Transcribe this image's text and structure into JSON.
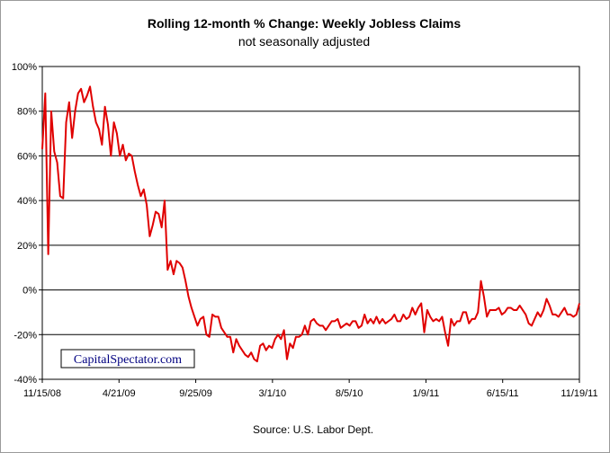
{
  "chart_data": {
    "type": "line",
    "title": "Rolling 12-month %  Change: Weekly Jobless Claims",
    "subtitle": "not seasonally adjusted",
    "source": "Source: U.S. Labor Dept.",
    "watermark": "CapitalSpectator.com",
    "xlabel": "",
    "ylabel": "",
    "x_tick_labels": [
      "11/15/08",
      "4/21/09",
      "9/25/09",
      "3/1/10",
      "8/5/10",
      "1/9/11",
      "6/15/11",
      "11/19/11"
    ],
    "y_tick_labels": [
      "100%",
      "80%",
      "60%",
      "40%",
      "20%",
      "0%",
      "-20%",
      "-40%"
    ],
    "ylim": [
      -40,
      100
    ],
    "y_unit": "%",
    "grid": "horizontal",
    "line_color": "#e00000",
    "series": [
      {
        "values": [
          63,
          88,
          16,
          80,
          62,
          57,
          42,
          41,
          75,
          84,
          68,
          80,
          88,
          90,
          84,
          87,
          91,
          82,
          75,
          72,
          65,
          82,
          74,
          60,
          75,
          70,
          60,
          65,
          58,
          61,
          60,
          53,
          47,
          42,
          45,
          38,
          24,
          29,
          35,
          34,
          28,
          40,
          9,
          13,
          7,
          13,
          12,
          10,
          4,
          -3,
          -8,
          -12,
          -16,
          -13,
          -12,
          -20,
          -21,
          -11,
          -12,
          -12,
          -17,
          -19,
          -21,
          -21,
          -28,
          -22,
          -25,
          -27,
          -29,
          -30,
          -28,
          -31,
          -32,
          -25,
          -24,
          -27,
          -25,
          -26,
          -22,
          -20,
          -22,
          -18,
          -31,
          -24,
          -26,
          -21,
          -21,
          -20,
          -16,
          -20,
          -14,
          -13,
          -15,
          -16,
          -16,
          -18,
          -16,
          -14,
          -14,
          -13,
          -17,
          -16,
          -15,
          -16,
          -14,
          -14,
          -17,
          -16,
          -11,
          -15,
          -13,
          -15,
          -12,
          -15,
          -13,
          -15,
          -14,
          -13,
          -11,
          -14,
          -14,
          -11,
          -13,
          -12,
          -8,
          -11,
          -8,
          -6,
          -19,
          -9,
          -12,
          -14,
          -13,
          -14,
          -12,
          -19,
          -25,
          -13,
          -16,
          -14,
          -14,
          -10,
          -10,
          -15,
          -13,
          -13,
          -10,
          4,
          -3,
          -12,
          -9,
          -9,
          -9,
          -8,
          -11,
          -10,
          -8,
          -8,
          -9,
          -9,
          -7,
          -9,
          -11,
          -15,
          -16,
          -13,
          -10,
          -12,
          -9,
          -4,
          -7,
          -11,
          -11,
          -12,
          -10,
          -8,
          -11,
          -11,
          -12,
          -11,
          -6
        ]
      }
    ]
  }
}
